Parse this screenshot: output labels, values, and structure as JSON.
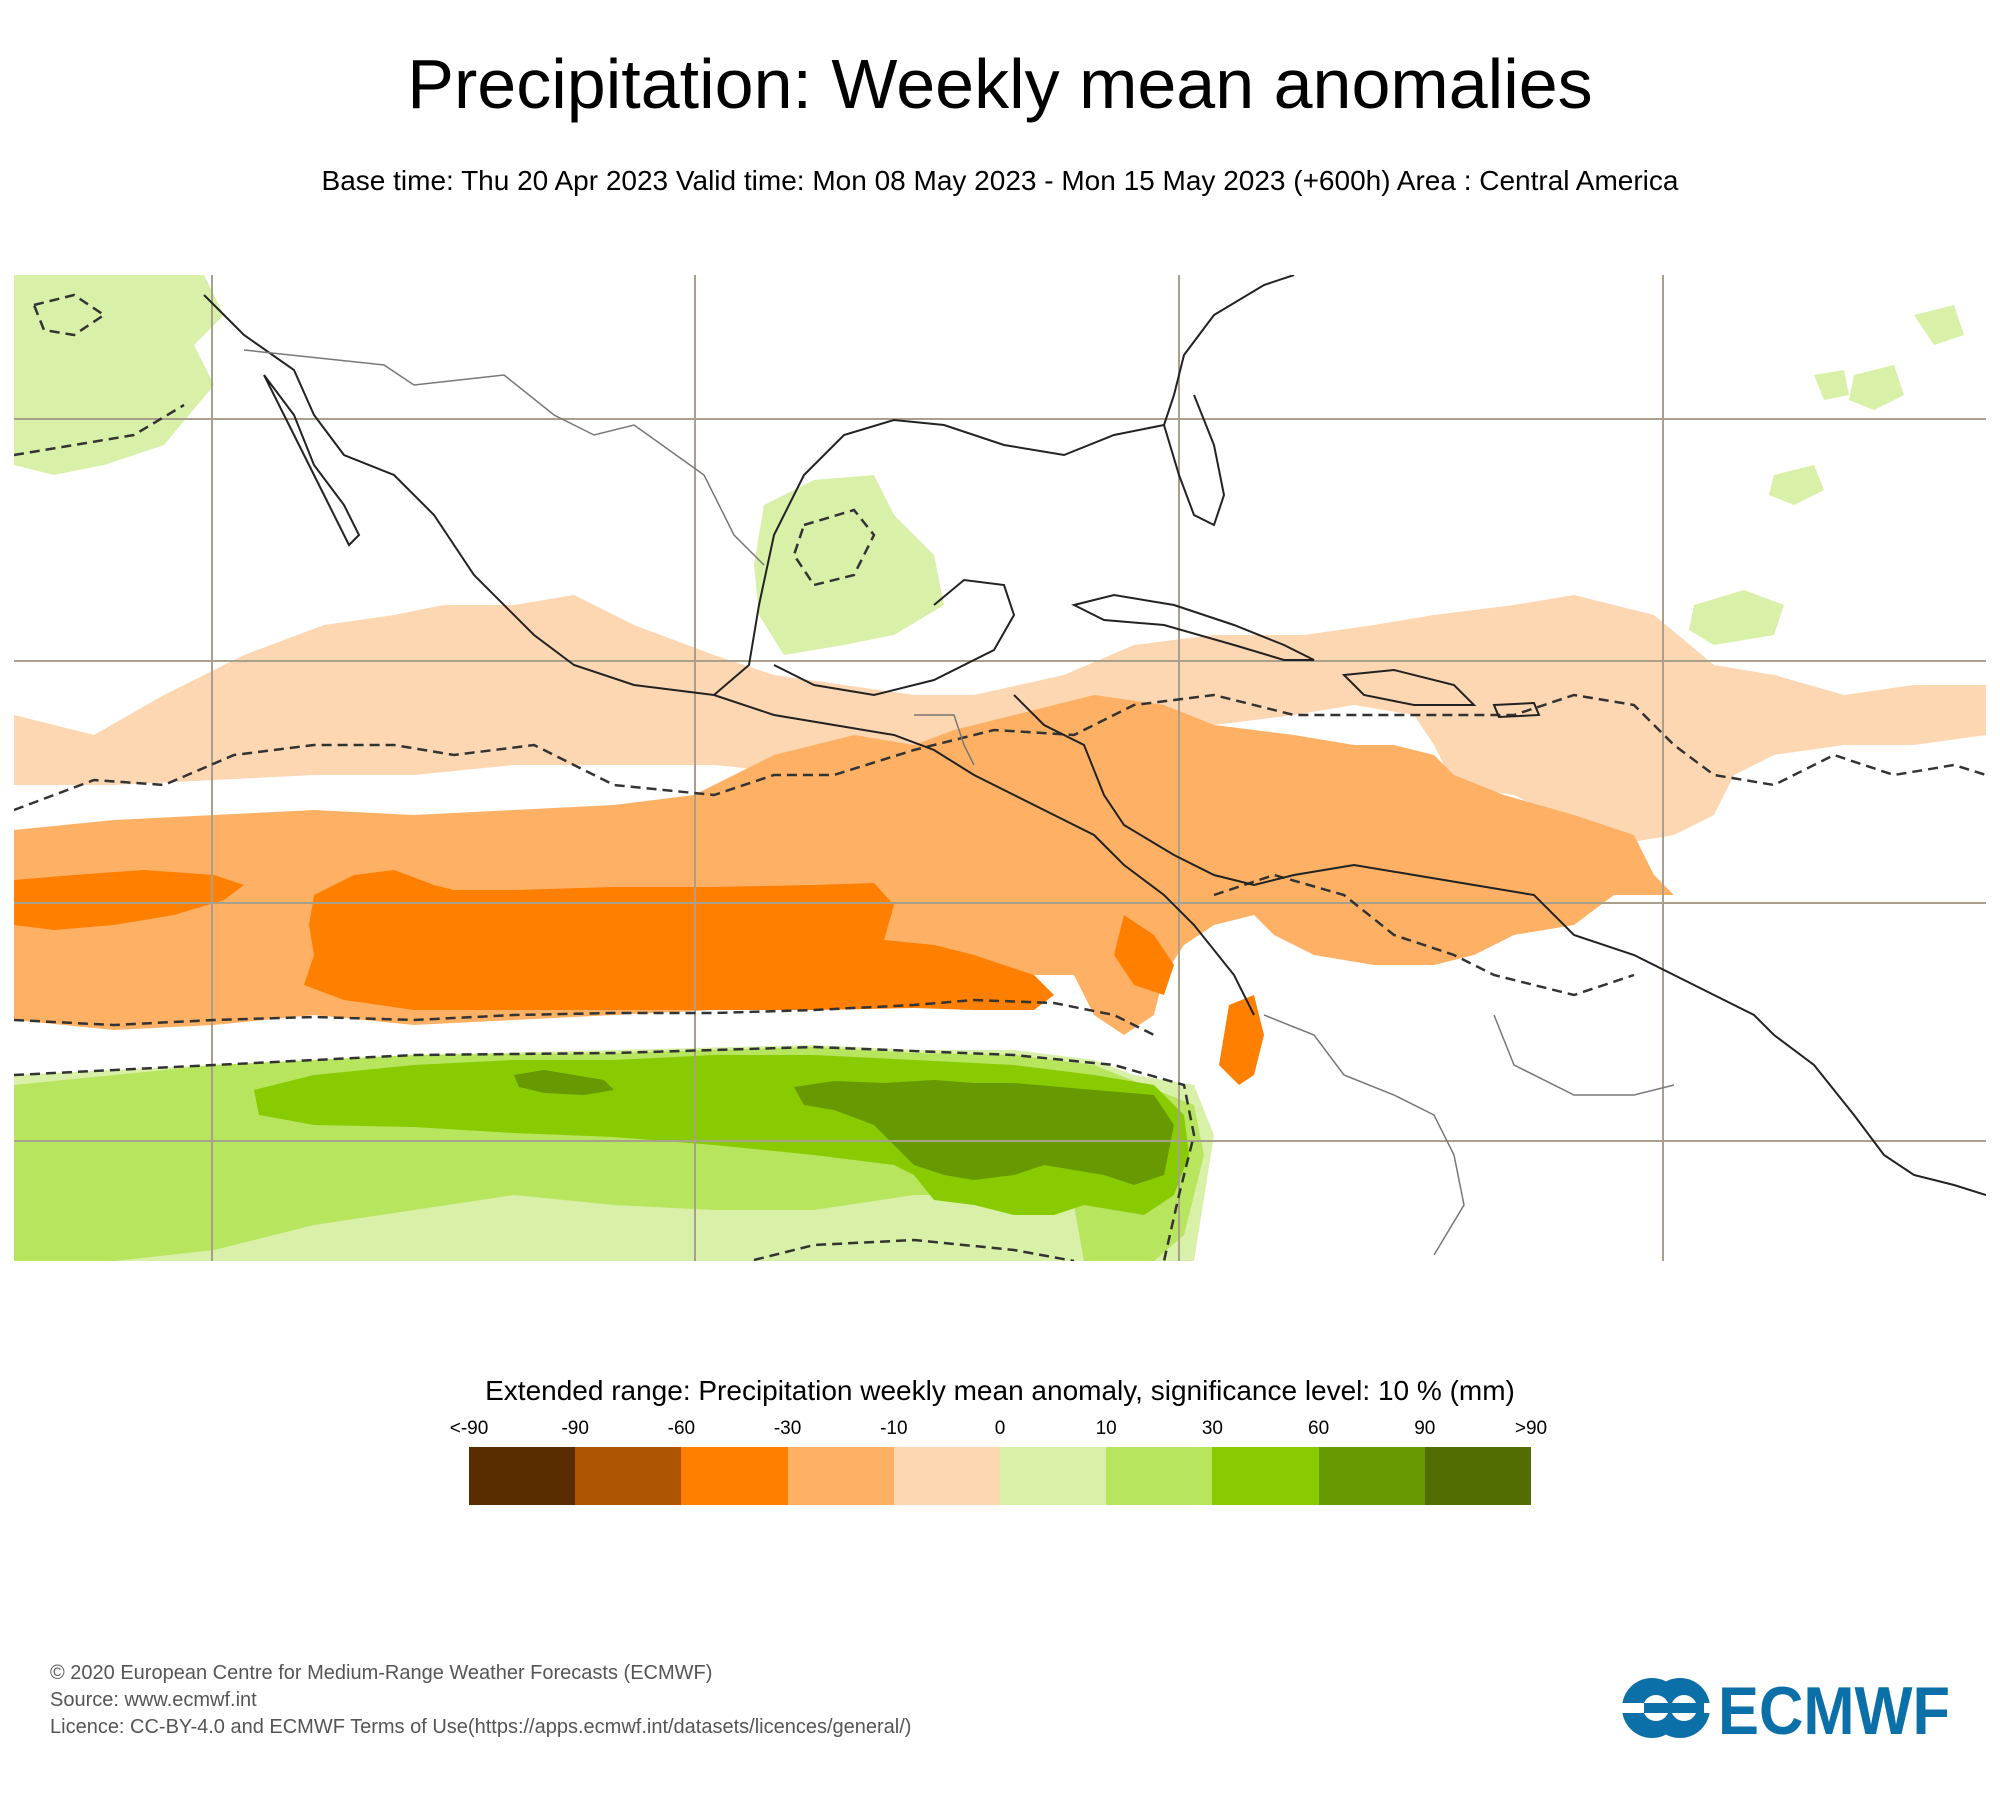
{
  "header": {
    "title": "Precipitation: Weekly mean anomalies",
    "subtitle": "Base time: Thu 20 Apr 2023 Valid time: Mon 08 May 2023 - Mon 15 May 2023 (+600h) Area : Central America"
  },
  "map": {
    "area": "Central America",
    "colors": {
      "strong_dry": "#ff7f00",
      "moderate_dry": "#feb165",
      "weak_dry": "#fdd6b2",
      "weak_wet": "#d9f0a8",
      "moderate_wet": "#b7e55e",
      "strong_wet": "#88cb00",
      "very_wet": "#669a00",
      "coast": "#222222",
      "grid": "#a89f8c"
    }
  },
  "legend": {
    "title": "Extended range: Precipitation weekly mean anomaly, significance level: 10 % (mm)",
    "ticks": [
      "<-90",
      "-90",
      "-60",
      "-30",
      "-10",
      "0",
      "10",
      "30",
      "60",
      "90",
      ">90"
    ],
    "colors": [
      "#5a2d00",
      "#ad5500",
      "#ff7f00",
      "#feb165",
      "#fdd6b2",
      "#d9f0a8",
      "#b7e55e",
      "#88cb00",
      "#669a00",
      "#526d00"
    ]
  },
  "footer": {
    "copyright": "© 2020 European Centre for Medium-Range Weather Forecasts (ECMWF)",
    "source": "Source: www.ecmwf.int",
    "licence": "Licence: CC-BY-4.0 and ECMWF Terms of Use(https://apps.ecmwf.int/datasets/licences/general/)"
  },
  "logo": {
    "text": "ECMWF",
    "color": "#0b6fa8"
  }
}
